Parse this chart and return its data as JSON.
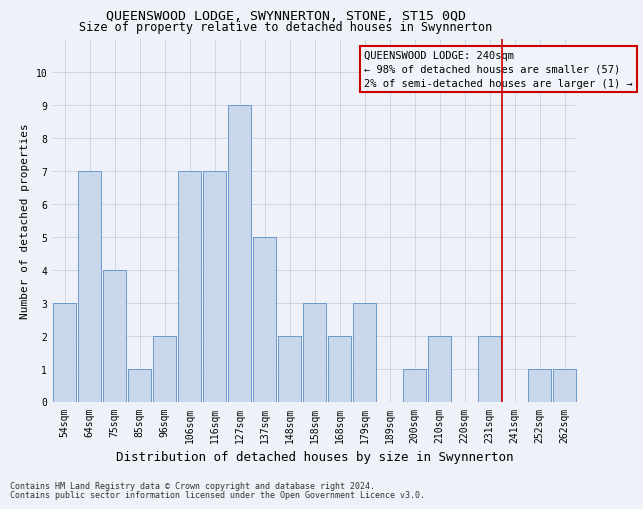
{
  "title": "QUEENSWOOD LODGE, SWYNNERTON, STONE, ST15 0QD",
  "subtitle": "Size of property relative to detached houses in Swynnerton",
  "xlabel": "Distribution of detached houses by size in Swynnerton",
  "ylabel": "Number of detached properties",
  "categories": [
    "54sqm",
    "64sqm",
    "75sqm",
    "85sqm",
    "96sqm",
    "106sqm",
    "116sqm",
    "127sqm",
    "137sqm",
    "148sqm",
    "158sqm",
    "168sqm",
    "179sqm",
    "189sqm",
    "200sqm",
    "210sqm",
    "220sqm",
    "231sqm",
    "241sqm",
    "252sqm",
    "262sqm"
  ],
  "values": [
    3,
    7,
    4,
    1,
    2,
    7,
    7,
    9,
    5,
    2,
    3,
    2,
    3,
    0,
    1,
    2,
    0,
    2,
    0,
    1,
    1
  ],
  "bar_color": "#c8d8ea",
  "bar_edge_color": "#5b8fc7",
  "grid_color": "#c8d0e0",
  "property_line_index": 18,
  "property_line_color": "#cc0000",
  "annotation_text": "QUEENSWOOD LODGE: 240sqm\n← 98% of detached houses are smaller (57)\n2% of semi-detached houses are larger (1) →",
  "annotation_box_color": "#cc0000",
  "annotation_box_fill": "#f0f4fa",
  "ylim": [
    0,
    11
  ],
  "yticks": [
    0,
    1,
    2,
    3,
    4,
    5,
    6,
    7,
    8,
    9,
    10
  ],
  "footnote1": "Contains HM Land Registry data © Crown copyright and database right 2024.",
  "footnote2": "Contains public sector information licensed under the Open Government Licence v3.0.",
  "background_color": "#eef2f8",
  "title_fontsize": 9.5,
  "subtitle_fontsize": 8.5,
  "axis_label_fontsize": 8,
  "tick_fontsize": 7,
  "annotation_fontsize": 7.5,
  "footnote_fontsize": 6
}
